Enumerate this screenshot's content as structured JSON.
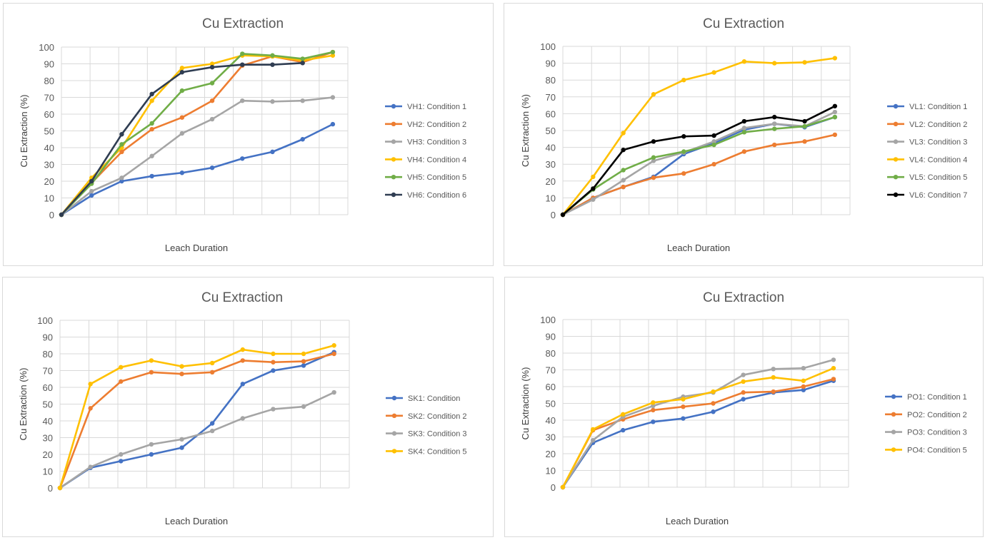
{
  "chart_data": [
    {
      "type": "line",
      "title": "Cu Extraction",
      "xlabel": "Leach Duration",
      "ylabel": "Cu Extraction (%)",
      "ylim": [
        0,
        100
      ],
      "yticks": [
        0,
        10,
        20,
        30,
        40,
        50,
        60,
        70,
        80,
        90,
        100
      ],
      "grid": true,
      "legend": "right",
      "series": [
        {
          "name": "VH1: Condition 1",
          "color": "#4472c4",
          "values": [
            0,
            11.5,
            20,
            23,
            25,
            28,
            33.5,
            37.5,
            45,
            54
          ]
        },
        {
          "name": "VH2: Condition 2",
          "color": "#ed7d31",
          "values": [
            0,
            19,
            37.5,
            51,
            58,
            68,
            89,
            94.5,
            91,
            97
          ]
        },
        {
          "name": "VH3: Condition 3",
          "color": "#a5a5a5",
          "values": [
            0,
            14,
            22,
            35,
            48.5,
            57,
            68,
            67.5,
            68,
            70
          ]
        },
        {
          "name": "VH4: Condition 4",
          "color": "#ffc000",
          "values": [
            0,
            22,
            40,
            68,
            87.5,
            90,
            95,
            94.5,
            92,
            95
          ]
        },
        {
          "name": "VH5: Condition 5",
          "color": "#70ad47",
          "values": [
            0,
            18.5,
            42,
            54.5,
            74,
            78.5,
            96,
            95,
            93,
            97
          ]
        },
        {
          "name": "VH6: Condition 6",
          "color": "#2f3d52",
          "values": [
            0,
            20,
            48,
            72,
            85,
            88,
            89.5,
            89.5,
            90.5,
            null
          ]
        }
      ]
    },
    {
      "type": "line",
      "title": "Cu Extraction",
      "xlabel": "Leach Duration",
      "ylabel": "Cu Extraction (%)",
      "ylim": [
        0,
        100
      ],
      "yticks": [
        0,
        10,
        20,
        30,
        40,
        50,
        60,
        70,
        80,
        90,
        100
      ],
      "grid": true,
      "legend": "right",
      "series": [
        {
          "name": "VL1: Condition 1",
          "color": "#4472c4",
          "values": [
            0,
            10,
            16.5,
            22.5,
            36,
            42.5,
            50.5,
            54,
            52,
            58
          ]
        },
        {
          "name": "VL2: Condition 2",
          "color": "#ed7d31",
          "values": [
            0,
            10,
            16.5,
            22,
            24.5,
            30,
            37.5,
            41.5,
            43.5,
            47.5
          ]
        },
        {
          "name": "VL3: Condition 3",
          "color": "#a5a5a5",
          "values": [
            0,
            9,
            20.5,
            32,
            37,
            43.5,
            51.5,
            54,
            52.5,
            61
          ]
        },
        {
          "name": "VL4: Condition 4",
          "color": "#ffc000",
          "values": [
            0,
            22.5,
            48.5,
            71.5,
            80,
            84.5,
            91,
            90,
            90.5,
            93
          ]
        },
        {
          "name": "VL5: Condition 5",
          "color": "#70ad47",
          "values": [
            0,
            15,
            26.5,
            34,
            37.5,
            41.5,
            49,
            51,
            52.5,
            58
          ]
        },
        {
          "name": "VL6: Condition 7",
          "color": "#000000",
          "values": [
            0,
            15.5,
            38.5,
            43.5,
            46.5,
            47,
            55.5,
            58,
            55.5,
            64.5
          ]
        }
      ]
    },
    {
      "type": "line",
      "title": "Cu Extraction",
      "xlabel": "Leach Duration",
      "ylabel": "Cu Extraction (%)",
      "ylim": [
        0,
        100
      ],
      "yticks": [
        0,
        10,
        20,
        30,
        40,
        50,
        60,
        70,
        80,
        90,
        100
      ],
      "grid": true,
      "legend": "right",
      "series": [
        {
          "name": "SK1: Condition",
          "color": "#4472c4",
          "values": [
            0,
            12,
            16,
            20,
            24,
            38.5,
            62,
            70,
            73,
            81
          ]
        },
        {
          "name": "SK2: Condition 2",
          "color": "#ed7d31",
          "values": [
            0,
            47.5,
            63.5,
            69,
            68,
            69,
            76,
            75,
            75.5,
            80
          ]
        },
        {
          "name": "SK3: Condition 3",
          "color": "#a5a5a5",
          "values": [
            0,
            12.5,
            20,
            26,
            29,
            34,
            41.5,
            47,
            48.5,
            57
          ]
        },
        {
          "name": "SK4: Condition 5",
          "color": "#ffc000",
          "values": [
            0,
            62,
            72,
            76,
            72.5,
            74.5,
            82.5,
            80,
            80,
            85
          ]
        }
      ]
    },
    {
      "type": "line",
      "title": "Cu Extraction",
      "xlabel": "Leach Duration",
      "ylabel": "Cu Extraction (%)",
      "ylim": [
        0,
        100
      ],
      "yticks": [
        0,
        10,
        20,
        30,
        40,
        50,
        60,
        70,
        80,
        90,
        100
      ],
      "grid": true,
      "legend": "right",
      "series": [
        {
          "name": "PO1: Condition 1",
          "color": "#4472c4",
          "values": [
            0,
            26.5,
            34,
            39,
            41,
            45,
            52.5,
            56.5,
            58,
            63.5
          ]
        },
        {
          "name": "PO2: Condition 2",
          "color": "#ed7d31",
          "values": [
            0,
            34,
            40.5,
            46,
            48,
            50,
            56.5,
            57,
            60,
            64.5
          ]
        },
        {
          "name": "PO3: Condition 3",
          "color": "#a5a5a5",
          "values": [
            0,
            28,
            42,
            48.5,
            54,
            56.5,
            67,
            70.5,
            71,
            76
          ]
        },
        {
          "name": "PO4: Condition 5",
          "color": "#ffc000",
          "values": [
            0,
            34.5,
            43.5,
            50.5,
            52.5,
            57,
            63,
            65.5,
            63.5,
            71
          ]
        }
      ]
    }
  ]
}
